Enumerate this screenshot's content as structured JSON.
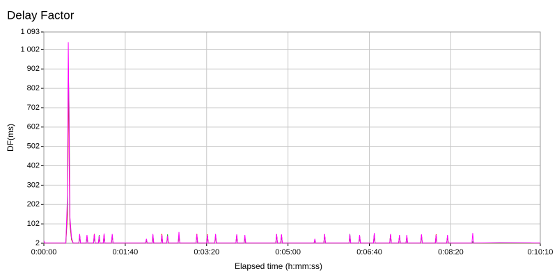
{
  "chart_data": {
    "type": "line",
    "title": "Delay Factor",
    "x_label": "Elapsed time (h:mm:ss)",
    "y_label": "DF(ms)",
    "x": [
      0,
      1,
      3,
      27,
      29,
      30,
      31,
      32,
      34,
      36,
      43,
      44,
      45,
      52,
      53,
      54,
      61,
      62,
      63,
      67,
      68,
      69,
      73,
      74,
      75,
      83,
      84,
      85,
      125,
      126,
      127,
      133,
      134,
      135,
      144,
      145,
      146,
      151,
      152,
      153,
      165,
      166,
      167,
      187,
      188,
      189,
      200,
      201,
      202,
      210,
      211,
      212,
      236,
      237,
      238,
      246,
      247,
      248,
      285,
      286,
      287,
      291,
      292,
      293,
      332,
      333,
      334,
      344,
      345,
      346,
      375,
      376,
      377,
      387,
      388,
      389,
      405,
      406,
      407,
      425,
      426,
      427,
      436,
      437,
      438,
      445,
      446,
      447,
      463,
      464,
      465,
      481,
      482,
      483,
      495,
      496,
      497,
      526,
      527,
      528,
      560,
      600,
      610
    ],
    "series": [
      {
        "color": "#ff0000",
        "values": [
          3,
          3,
          3,
          3,
          150,
          900,
          450,
          100,
          20,
          3,
          3,
          45,
          3,
          3,
          40,
          3,
          3,
          50,
          3,
          3,
          30,
          3,
          3,
          48,
          3,
          3,
          40,
          3,
          3,
          15,
          3,
          3,
          40,
          3,
          3,
          50,
          3,
          3,
          35,
          3,
          3,
          40,
          3,
          3,
          50,
          3,
          3,
          48,
          3,
          3,
          40,
          3,
          3,
          45,
          3,
          3,
          30,
          3,
          3,
          48,
          3,
          3,
          45,
          3,
          3,
          15,
          3,
          3,
          48,
          3,
          3,
          40,
          3,
          3,
          40,
          3,
          3,
          45,
          3,
          3,
          48,
          3,
          3,
          42,
          3,
          3,
          40,
          3,
          3,
          45,
          3,
          3,
          48,
          3,
          3,
          35,
          3,
          3,
          8,
          3,
          3,
          3,
          3
        ]
      },
      {
        "color": "#33aa33",
        "values": [
          3,
          3,
          3,
          3,
          200,
          915,
          700,
          120,
          25,
          3,
          3,
          40,
          3,
          3,
          30,
          3,
          3,
          35,
          3,
          3,
          45,
          3,
          3,
          40,
          3,
          3,
          45,
          3,
          3,
          20,
          3,
          3,
          45,
          3,
          3,
          40,
          3,
          3,
          48,
          3,
          3,
          45,
          3,
          3,
          40,
          3,
          3,
          40,
          3,
          3,
          45,
          3,
          3,
          40,
          3,
          3,
          35,
          3,
          3,
          45,
          3,
          3,
          40,
          3,
          3,
          20,
          3,
          3,
          45,
          3,
          3,
          50,
          3,
          3,
          35,
          3,
          3,
          48,
          3,
          3,
          45,
          3,
          3,
          40,
          3,
          3,
          35,
          3,
          3,
          40,
          3,
          3,
          40,
          3,
          3,
          40,
          3,
          3,
          10,
          3,
          3,
          3,
          3
        ]
      },
      {
        "color": "#ff00ff",
        "values": [
          15,
          3,
          3,
          3,
          250,
          1040,
          600,
          140,
          30,
          3,
          3,
          50,
          3,
          3,
          45,
          3,
          3,
          48,
          3,
          3,
          40,
          3,
          3,
          52,
          3,
          3,
          50,
          3,
          3,
          25,
          3,
          3,
          50,
          3,
          3,
          45,
          3,
          3,
          40,
          3,
          3,
          60,
          3,
          3,
          48,
          3,
          3,
          45,
          3,
          3,
          50,
          3,
          3,
          48,
          3,
          3,
          45,
          3,
          3,
          50,
          3,
          3,
          48,
          3,
          3,
          25,
          3,
          3,
          50,
          3,
          3,
          48,
          3,
          3,
          45,
          3,
          3,
          55,
          3,
          3,
          50,
          3,
          3,
          45,
          3,
          3,
          45,
          3,
          3,
          48,
          3,
          3,
          45,
          3,
          3,
          45,
          3,
          3,
          55,
          3,
          5,
          4,
          3
        ]
      }
    ],
    "xlim": [
      0,
      610
    ],
    "xticks": [
      {
        "value": 0,
        "label": "0:00:00"
      },
      {
        "value": 100,
        "label": "0:01:40"
      },
      {
        "value": 200,
        "label": "0:03:20"
      },
      {
        "value": 300,
        "label": "0:05:00"
      },
      {
        "value": 400,
        "label": "0:06:40"
      },
      {
        "value": 500,
        "label": "0:08:20"
      },
      {
        "value": 610,
        "label": "0:10:10"
      }
    ],
    "ylim": [
      2,
      1093
    ],
    "yticks": [
      2,
      102,
      202,
      302,
      402,
      502,
      602,
      702,
      802,
      902,
      {
        "value": 1002,
        "label": "1 002"
      },
      {
        "value": 1093,
        "label": "1 093"
      }
    ],
    "grid": true
  }
}
